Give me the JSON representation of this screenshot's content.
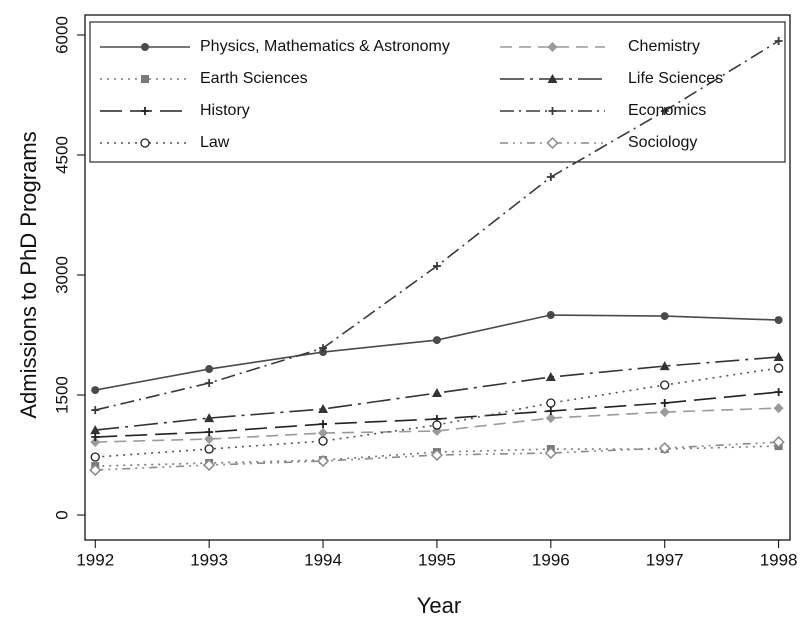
{
  "chart_data": {
    "type": "line",
    "x_label": "Year",
    "y_label": "Admissions to PhD Programs",
    "x": [
      1992,
      1993,
      1994,
      1995,
      1996,
      1997,
      1998
    ],
    "xlim": [
      1991.91,
      1998.1
    ],
    "xticks": [
      1992,
      1993,
      1994,
      1995,
      1996,
      1997,
      1998
    ],
    "ylim": [
      -312,
      6250
    ],
    "yticks": [
      0,
      1500,
      3000,
      4500,
      6000
    ],
    "series": [
      {
        "name": "Physics, Mathematics & Astronomy",
        "color": "#4a4a4a",
        "dash": "solid",
        "marker": "circle",
        "values": [
          1562,
          1825,
          2037,
          2187,
          2500,
          2487,
          2437
        ]
      },
      {
        "name": "Chemistry",
        "color": "#9a9a9a",
        "dash": "dashed",
        "marker": "diamond",
        "values": [
          912,
          950,
          1025,
          1050,
          1212,
          1287,
          1337
        ]
      },
      {
        "name": "Earth Sciences",
        "color": "#7a7a7a",
        "dash": "dotted",
        "marker": "square",
        "values": [
          612,
          650,
          687,
          787,
          825,
          825,
          862
        ]
      },
      {
        "name": "Life Sciences",
        "color": "#333333",
        "dash": "longdashdot",
        "marker": "triangle",
        "values": [
          1062,
          1212,
          1325,
          1525,
          1725,
          1862,
          1975
        ]
      },
      {
        "name": "History",
        "color": "#222222",
        "dash": "longdash",
        "marker": "plus",
        "values": [
          975,
          1037,
          1137,
          1200,
          1300,
          1400,
          1537
        ]
      },
      {
        "name": "Economics",
        "color": "#3a3a3a",
        "dash": "dashdot",
        "marker": "plus",
        "values": [
          1312,
          1650,
          2087,
          3112,
          4225,
          5050,
          5925
        ]
      },
      {
        "name": "Law",
        "color": "#555555",
        "dash": "dotted",
        "marker": "open-circle",
        "values": [
          725,
          825,
          925,
          1125,
          1400,
          1625,
          1837
        ]
      },
      {
        "name": "Sociology",
        "color": "#8a8a8a",
        "dash": "twodash",
        "marker": "open-diamond",
        "values": [
          562,
          625,
          675,
          750,
          775,
          837,
          912
        ]
      }
    ]
  }
}
